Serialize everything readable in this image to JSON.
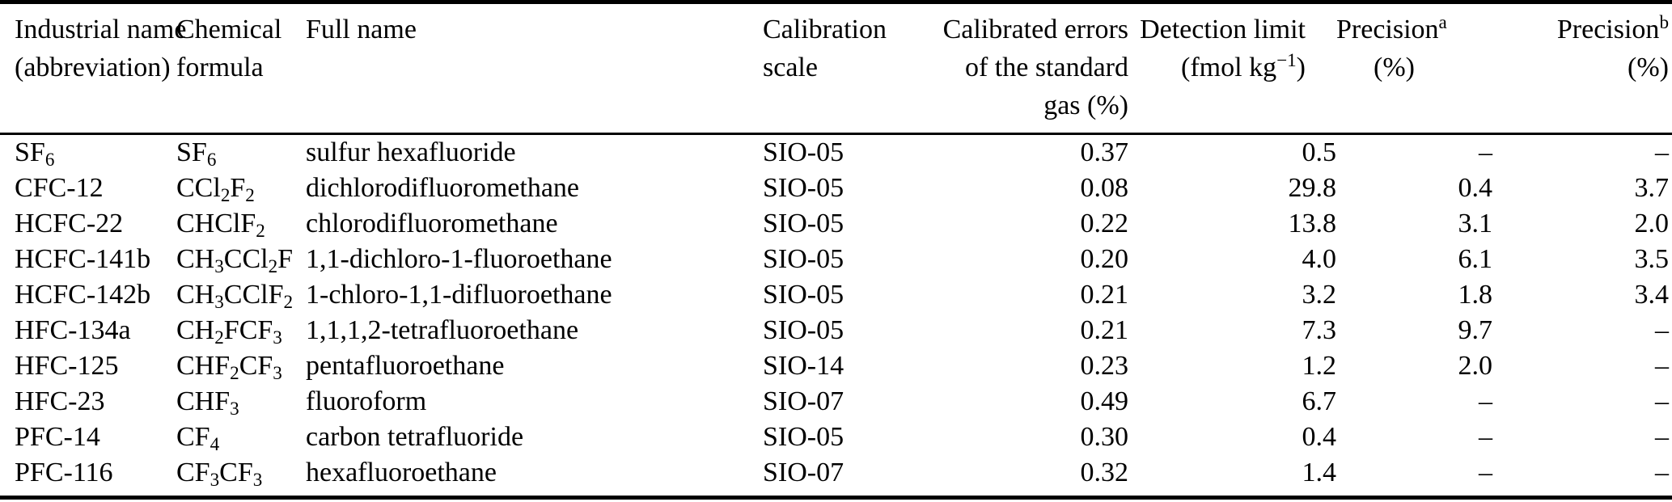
{
  "table": {
    "columns": [
      {
        "id": "industrial_name",
        "label": "Industrial name\n(abbreviation)"
      },
      {
        "id": "formula",
        "label": "Chemical\nformula"
      },
      {
        "id": "full_name",
        "label": "Full name"
      },
      {
        "id": "scale",
        "label": "Calibration\nscale"
      },
      {
        "id": "cal_error",
        "label": "Calibrated errors\nof the standard\ngas (%)"
      },
      {
        "id": "detection_limit",
        "label": "Detection limit\n(fmol kg^−1^)"
      },
      {
        "id": "precision_a",
        "label": "Precision^a^\n(%)"
      },
      {
        "id": "precision_b",
        "label": "Precision^b^\n(%)"
      }
    ],
    "rows": [
      {
        "industrial_name": "SF_6_",
        "formula": "SF_6_",
        "full_name": "sulfur hexafluoride",
        "scale": "SIO-05",
        "cal_error": "0.37",
        "detection_limit": "0.5",
        "precision_a": "–",
        "precision_b": "–"
      },
      {
        "industrial_name": "CFC-12",
        "formula": "CCl_2_F_2_",
        "full_name": "dichlorodifluoromethane",
        "scale": "SIO-05",
        "cal_error": "0.08",
        "detection_limit": "29.8",
        "precision_a": "0.4",
        "precision_b": "3.7"
      },
      {
        "industrial_name": "HCFC-22",
        "formula": "CHClF_2_",
        "full_name": "chlorodifluoromethane",
        "scale": "SIO-05",
        "cal_error": "0.22",
        "detection_limit": "13.8",
        "precision_a": "3.1",
        "precision_b": "2.0"
      },
      {
        "industrial_name": "HCFC-141b",
        "formula": "CH_3_CCl_2_F",
        "full_name": "1,1-dichloro-1-fluoroethane",
        "scale": "SIO-05",
        "cal_error": "0.20",
        "detection_limit": "4.0",
        "precision_a": "6.1",
        "precision_b": "3.5"
      },
      {
        "industrial_name": "HCFC-142b",
        "formula": "CH_3_CClF_2_",
        "full_name": "1-chloro-1,1-difluoroethane",
        "scale": "SIO-05",
        "cal_error": "0.21",
        "detection_limit": "3.2",
        "precision_a": "1.8",
        "precision_b": "3.4"
      },
      {
        "industrial_name": "HFC-134a",
        "formula": "CH_2_FCF_3_",
        "full_name": "1,1,1,2-tetrafluoroethane",
        "scale": "SIO-05",
        "cal_error": "0.21",
        "detection_limit": "7.3",
        "precision_a": "9.7",
        "precision_b": "–"
      },
      {
        "industrial_name": "HFC-125",
        "formula": "CHF_2_CF_3_",
        "full_name": "pentafluoroethane",
        "scale": "SIO-14",
        "cal_error": "0.23",
        "detection_limit": "1.2",
        "precision_a": "2.0",
        "precision_b": "–"
      },
      {
        "industrial_name": "HFC-23",
        "formula": "CHF_3_",
        "full_name": "fluoroform",
        "scale": "SIO-07",
        "cal_error": "0.49",
        "detection_limit": "6.7",
        "precision_a": "–",
        "precision_b": "–"
      },
      {
        "industrial_name": "PFC-14",
        "formula": "CF_4_",
        "full_name": "carbon tetrafluoride",
        "scale": "SIO-05",
        "cal_error": "0.30",
        "detection_limit": "0.4",
        "precision_a": "–",
        "precision_b": "–"
      },
      {
        "industrial_name": "PFC-116",
        "formula": "CF_3_CF_3_",
        "full_name": "hexafluoroethane",
        "scale": "SIO-07",
        "cal_error": "0.32",
        "detection_limit": "1.4",
        "precision_a": "–",
        "precision_b": "–"
      }
    ]
  }
}
